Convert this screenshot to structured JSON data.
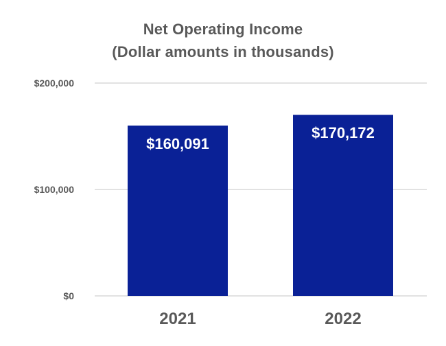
{
  "chart_data": {
    "type": "bar",
    "title_lines": [
      "Net Operating Income",
      "(Dollar amounts in thousands)"
    ],
    "categories": [
      "2021",
      "2022"
    ],
    "values": [
      160091,
      170172
    ],
    "data_labels": [
      "$160,091",
      "$170,172"
    ],
    "y_ticks": [
      0,
      100000,
      200000
    ],
    "y_tick_labels": [
      "$0",
      "$100,000",
      "$200,000"
    ],
    "ylim": [
      0,
      200000
    ],
    "grid": true,
    "legend": "none",
    "colors": {
      "bar": "#0a2196",
      "grid": "#d9d9d9",
      "title": "#595959",
      "tick_label": "#595959",
      "data_label": "#ffffff"
    }
  }
}
